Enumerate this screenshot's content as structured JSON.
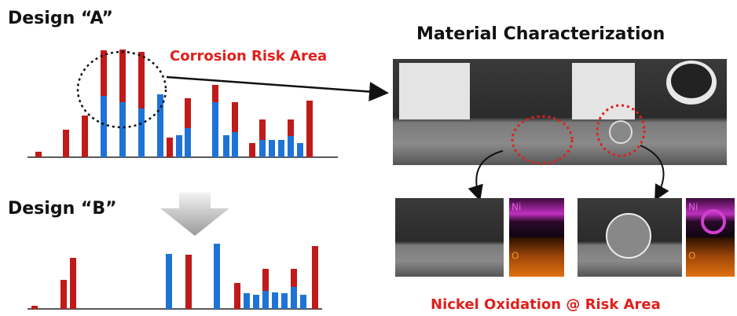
{
  "design_a": {
    "title": "Design “A”",
    "annotation": "Corrosion Risk Area"
  },
  "design_b": {
    "title": "Design “B”"
  },
  "characterization": {
    "title": "Material Characterization",
    "maps": [
      {
        "top": "Ni",
        "bottom": "O"
      },
      {
        "top": "Ni",
        "bottom": "O"
      }
    ],
    "caption": "Nickel Oxidation @ Risk Area"
  }
}
